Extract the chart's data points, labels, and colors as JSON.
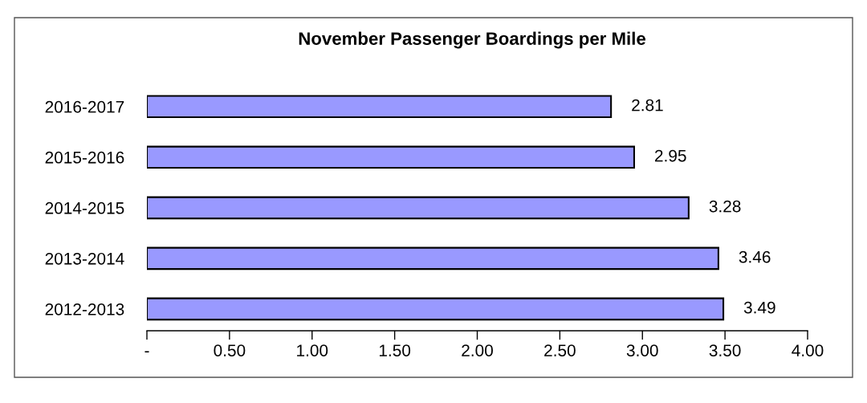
{
  "chart_data": {
    "type": "bar",
    "orientation": "horizontal",
    "title": "November Passenger Boardings per Mile",
    "categories": [
      "2016-2017",
      "2015-2016",
      "2014-2015",
      "2013-2014",
      "2012-2013"
    ],
    "values": [
      2.81,
      2.95,
      3.28,
      3.46,
      3.49
    ],
    "color": "#9999ff",
    "data_labels": true,
    "grid": false,
    "legend": false,
    "xlim": [
      0,
      4.0
    ],
    "xticks": [
      {
        "value": 0,
        "label": "-"
      },
      {
        "value": 0.5,
        "label": "0.50"
      },
      {
        "value": 1.0,
        "label": "1.00"
      },
      {
        "value": 1.5,
        "label": "1.50"
      },
      {
        "value": 2.0,
        "label": "2.00"
      },
      {
        "value": 2.5,
        "label": "2.50"
      },
      {
        "value": 3.0,
        "label": "3.00"
      },
      {
        "value": 3.5,
        "label": "3.50"
      },
      {
        "value": 4.0,
        "label": "4.00"
      }
    ]
  }
}
